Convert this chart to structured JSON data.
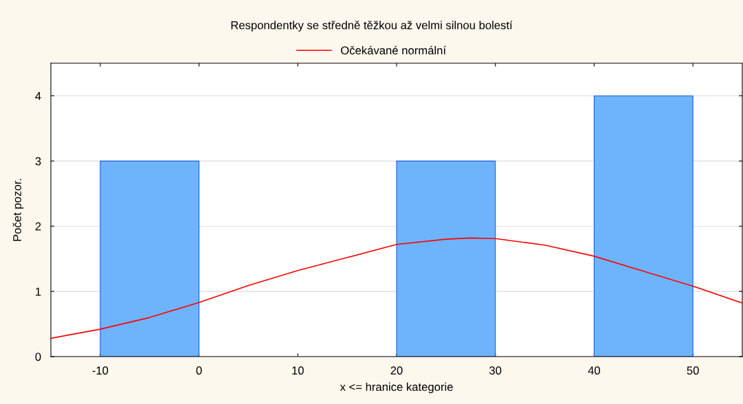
{
  "chart_data": {
    "type": "histogram",
    "title": "Respondentky se středně těžkou až velmi silnou bolestí",
    "xlabel": "x <= hranice kategorie",
    "ylabel": "Počet pozor.",
    "bins": [
      -10,
      0,
      10,
      20,
      30,
      40,
      50
    ],
    "values": [
      3,
      0,
      0,
      3,
      0,
      4
    ],
    "color": "#6db4fd",
    "series": [
      {
        "type": "line",
        "name": "Očekávané normální",
        "color": "#ff0000",
        "x": [
          -15,
          -10,
          -5,
          0,
          5,
          10,
          15,
          20,
          25,
          27.5,
          30,
          35,
          40,
          45,
          50,
          55
        ],
        "values": [
          0.28,
          0.42,
          0.6,
          0.83,
          1.09,
          1.32,
          1.52,
          1.72,
          1.8,
          1.82,
          1.81,
          1.71,
          1.54,
          1.31,
          1.08,
          0.82
        ]
      }
    ],
    "xlim": [
      -15,
      55
    ],
    "xticks": [
      -10,
      0,
      10,
      20,
      30,
      40,
      50
    ],
    "ylim": [
      0,
      4.5
    ],
    "yticks": [
      0,
      1,
      2,
      3,
      4
    ],
    "grid": "y",
    "legend": "top"
  }
}
